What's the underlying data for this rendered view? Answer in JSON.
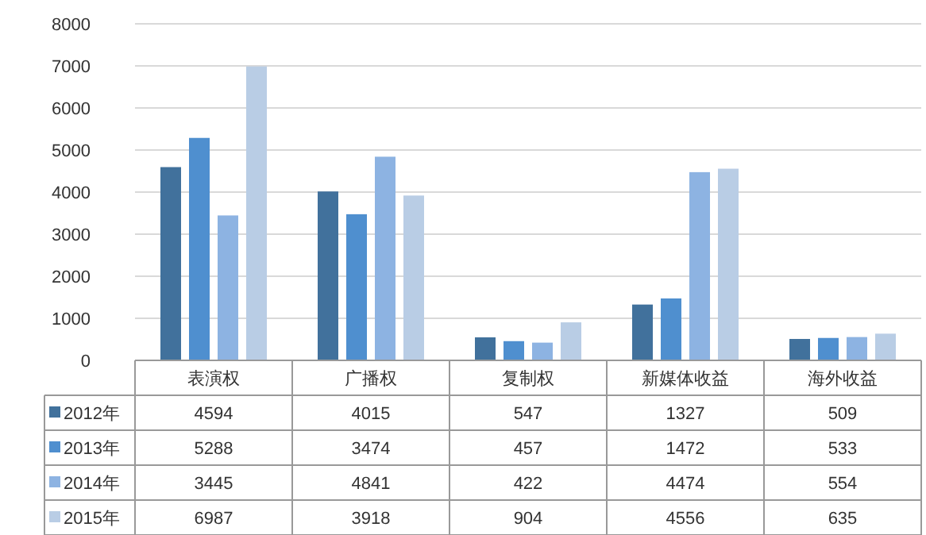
{
  "chart_data": {
    "type": "bar",
    "categories": [
      "表演权",
      "广播权",
      "复制权",
      "新媒体收益",
      "海外收益"
    ],
    "series": [
      {
        "name": "2012年",
        "color": "#41719c",
        "values": [
          4594,
          4015,
          547,
          1327,
          509
        ]
      },
      {
        "name": "2013年",
        "color": "#4f8fcf",
        "values": [
          5288,
          3474,
          457,
          1472,
          533
        ]
      },
      {
        "name": "2014年",
        "color": "#8db3e2",
        "values": [
          3445,
          4841,
          422,
          4474,
          554
        ]
      },
      {
        "name": "2015年",
        "color": "#b9cde5",
        "values": [
          6987,
          3918,
          904,
          4556,
          635
        ]
      }
    ],
    "ylim": [
      0,
      8000
    ],
    "yticks": [
      0,
      1000,
      2000,
      3000,
      4000,
      5000,
      6000,
      7000,
      8000
    ],
    "grid": "y",
    "data_labels": true,
    "legend": "bottom"
  }
}
